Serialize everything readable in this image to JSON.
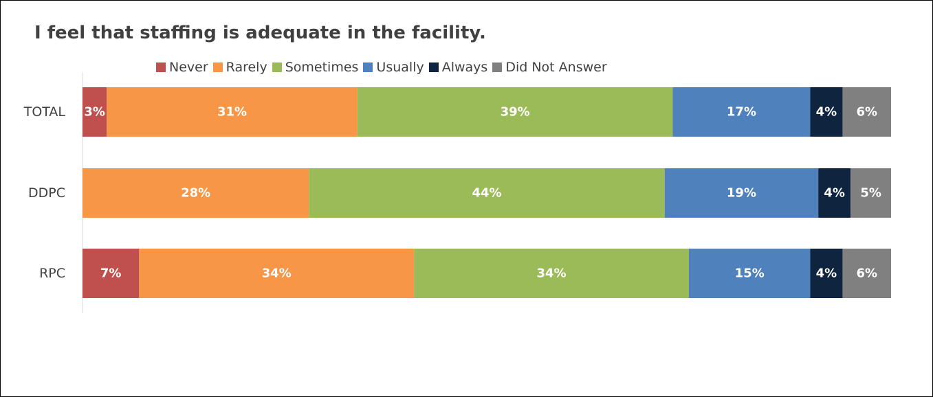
{
  "chart_data": {
    "type": "bar",
    "orientation": "horizontal",
    "stacked": "100%",
    "title": "I feel that staffing is adequate in the facility.",
    "xlabel": "",
    "ylabel": "",
    "categories": [
      "TOTAL",
      "DDPC",
      "RPC"
    ],
    "legend_position": "top",
    "grid": false,
    "series": [
      {
        "name": "Never",
        "color": "#C0504D",
        "values": [
          3,
          0,
          7
        ],
        "labels": [
          "3%",
          "",
          "7%"
        ]
      },
      {
        "name": "Rarely",
        "color": "#F79646",
        "values": [
          31,
          28,
          34
        ],
        "labels": [
          "31%",
          "28%",
          "34%"
        ]
      },
      {
        "name": "Sometimes",
        "color": "#9BBB59",
        "values": [
          39,
          44,
          34
        ],
        "labels": [
          "39%",
          "44%",
          "34%"
        ]
      },
      {
        "name": "Usually",
        "color": "#4F81BD",
        "values": [
          17,
          19,
          15
        ],
        "labels": [
          "17%",
          "19%",
          "15%"
        ]
      },
      {
        "name": "Always",
        "color": "#0F243E",
        "values": [
          4,
          4,
          4
        ],
        "labels": [
          "4%",
          "4%",
          "4%"
        ]
      },
      {
        "name": "Did Not Answer",
        "color": "#808080",
        "values": [
          6,
          5,
          6
        ],
        "labels": [
          "6%",
          "5%",
          "6%"
        ]
      }
    ]
  }
}
